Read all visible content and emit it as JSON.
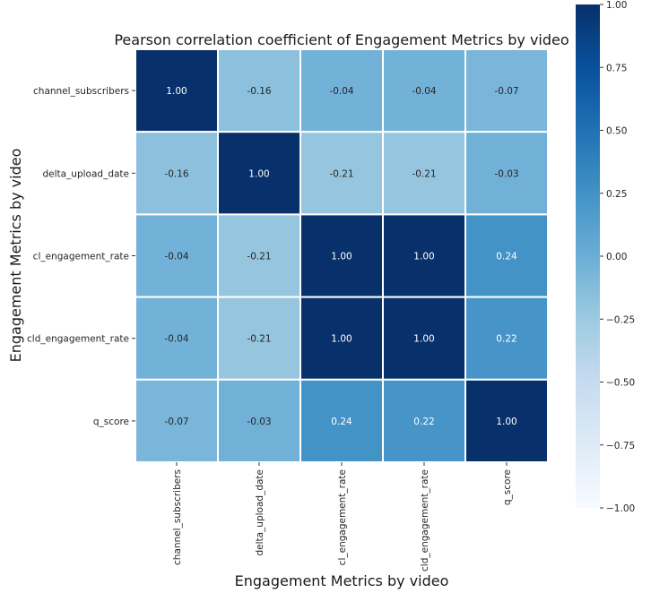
{
  "chart_data": {
    "type": "heatmap",
    "title": "Pearson correlation coefficient of Engagement Metrics by video",
    "xlabel": "Engagement Metrics by video",
    "ylabel": "Engagement Metrics by video",
    "x_categories": [
      "channel_subscribers",
      "delta_upload_date",
      "cl_engagement_rate",
      "cld_engagement_rate",
      "q_score"
    ],
    "y_categories": [
      "channel_subscribers",
      "delta_upload_date",
      "cl_engagement_rate",
      "cld_engagement_rate",
      "q_score"
    ],
    "values": [
      [
        1.0,
        -0.16,
        -0.04,
        -0.04,
        -0.07
      ],
      [
        -0.16,
        1.0,
        -0.21,
        -0.21,
        -0.03
      ],
      [
        -0.04,
        -0.21,
        1.0,
        1.0,
        0.24
      ],
      [
        -0.04,
        -0.21,
        1.0,
        1.0,
        0.22
      ],
      [
        -0.07,
        -0.03,
        0.24,
        0.22,
        1.0
      ]
    ],
    "annotation_format": "0.00",
    "colormap": "Blues",
    "vmin": -1.0,
    "vmax": 1.0,
    "colorbar": {
      "ticks": [
        1.0,
        0.75,
        0.5,
        0.25,
        0.0,
        -0.25,
        -0.5,
        -0.75,
        -1.0
      ],
      "tick_labels": [
        "1.00",
        "0.75",
        "0.50",
        "0.25",
        "0.00",
        "−0.25",
        "−0.50",
        "−0.75",
        "−1.00"
      ],
      "placement": "right"
    },
    "cell_border_color": "#ffffff",
    "grid": false
  }
}
